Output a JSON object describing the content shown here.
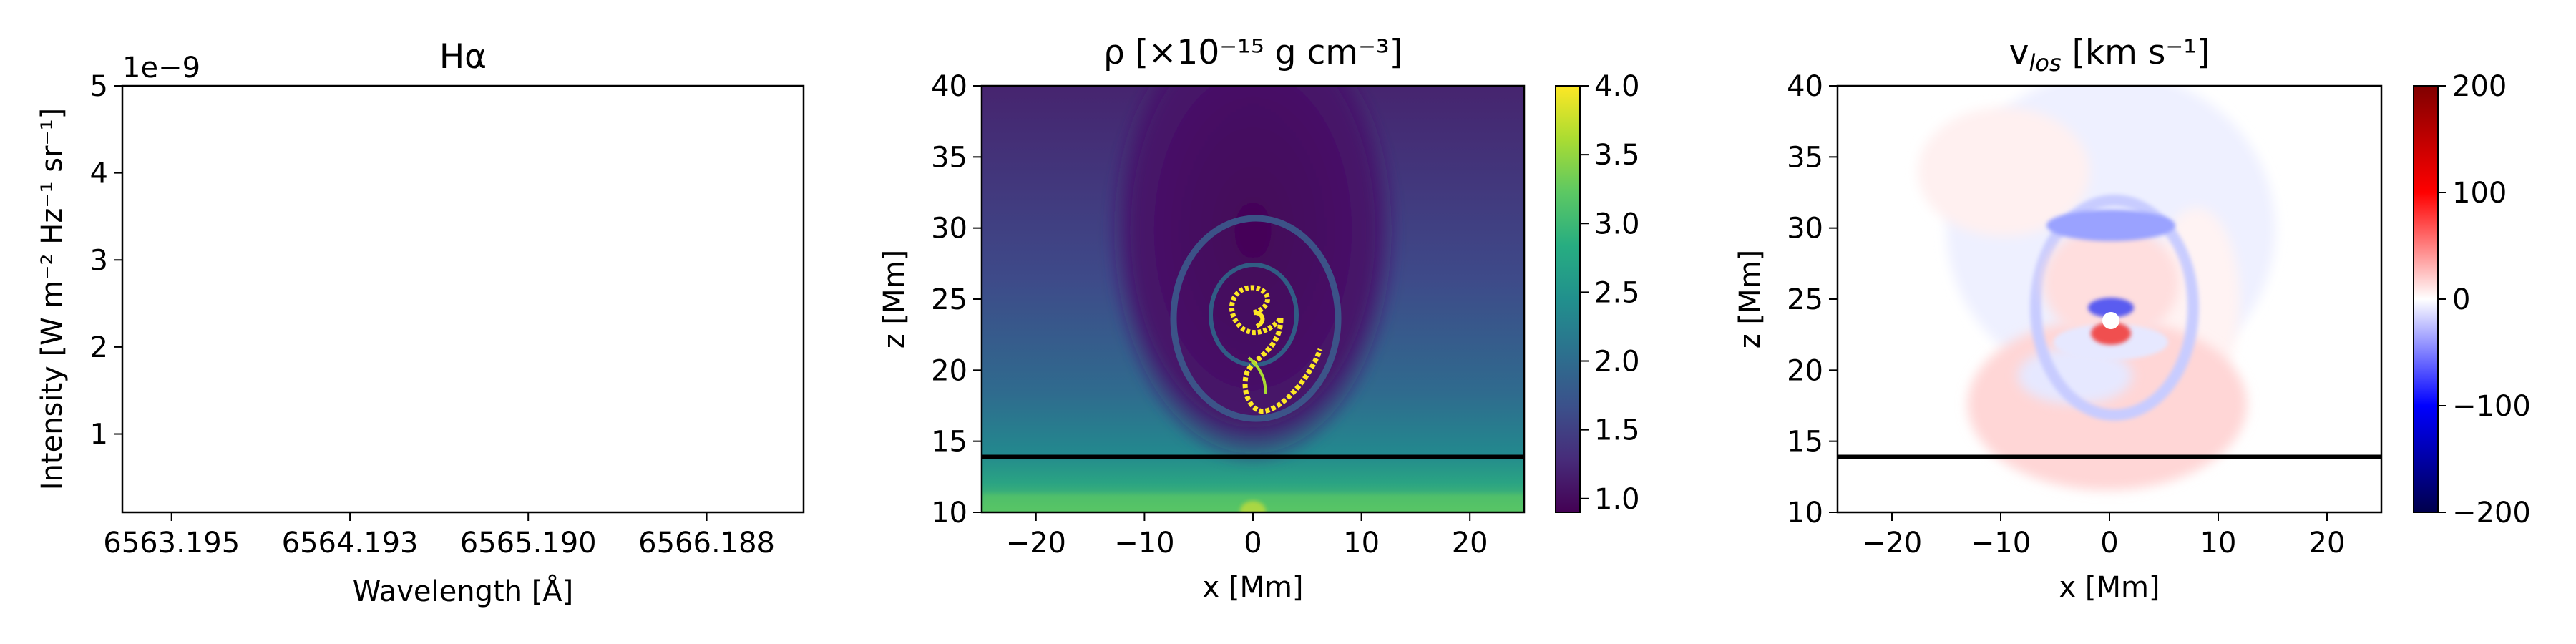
{
  "chart_data": [
    {
      "type": "line",
      "title": "Hα",
      "xlabel": "Wavelength [Å]",
      "ylabel": "Intensity [W m⁻² Hz⁻¹ sr⁻¹]",
      "offset_label": "1e−9",
      "xlim": [
        6562.92,
        6566.73
      ],
      "ylim": [
        0.1,
        5
      ],
      "x_ticks": [
        "6563.195",
        "6564.193",
        "6565.190",
        "6566.188"
      ],
      "x_tick_values": [
        6563.195,
        6564.193,
        6565.19,
        6566.188
      ],
      "y_ticks": [
        "1",
        "2",
        "3",
        "4",
        "5"
      ],
      "y_tick_values": [
        1,
        2,
        3,
        4,
        5
      ],
      "series": []
    },
    {
      "type": "heatmap",
      "title": "ρ [×10⁻¹⁵ g cm⁻³]",
      "xlabel": "x [Mm]",
      "ylabel": "z [Mm]",
      "xlim": [
        -25,
        25
      ],
      "ylim": [
        10,
        40
      ],
      "x_ticks": [
        "−20",
        "−10",
        "0",
        "10",
        "20"
      ],
      "x_tick_values": [
        -20,
        -10,
        0,
        10,
        20
      ],
      "y_ticks": [
        "10",
        "15",
        "20",
        "25",
        "30",
        "35",
        "40"
      ],
      "y_tick_values": [
        10,
        15,
        20,
        25,
        30,
        35,
        40
      ],
      "colormap": "viridis",
      "color_range": [
        0.9,
        4.0
      ],
      "colorbar_ticks": [
        "1.0",
        "1.5",
        "2.0",
        "2.5",
        "3.0",
        "3.5",
        "4.0"
      ],
      "colorbar_tick_values": [
        1.0,
        1.5,
        2.0,
        2.5,
        3.0,
        3.5,
        4.0
      ],
      "reference_line_z": 13.9
    },
    {
      "type": "heatmap",
      "title": "vlos [km s⁻¹]",
      "title_main": "v",
      "title_sub": "los",
      "title_rest": " [km s⁻¹]",
      "xlabel": "x [Mm]",
      "ylabel": "z [Mm]",
      "xlim": [
        -25,
        25
      ],
      "ylim": [
        10,
        40
      ],
      "x_ticks": [
        "−20",
        "−10",
        "0",
        "10",
        "20"
      ],
      "x_tick_values": [
        -20,
        -10,
        0,
        10,
        20
      ],
      "y_ticks": [
        "10",
        "15",
        "20",
        "25",
        "30",
        "35",
        "40"
      ],
      "y_tick_values": [
        10,
        15,
        20,
        25,
        30,
        35,
        40
      ],
      "colormap": "seismic",
      "color_range": [
        -200,
        200
      ],
      "colorbar_ticks": [
        "−200",
        "−100",
        "0",
        "100",
        "200"
      ],
      "colorbar_tick_values": [
        -200,
        -100,
        0,
        100,
        200
      ],
      "reference_line_z": 13.9
    }
  ]
}
